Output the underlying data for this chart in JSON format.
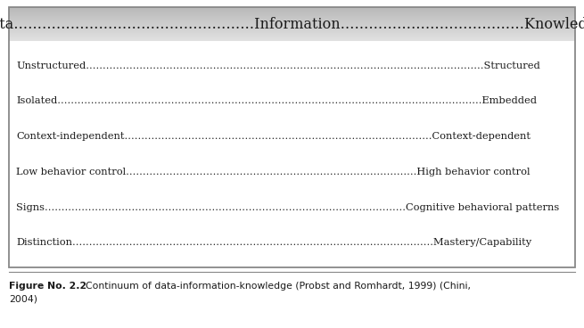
{
  "header_text": "Data……………………………………………Information…………………………………Knowledge",
  "rows": [
    "Unstructured………………………………………………………………………………………………………..Structured",
    "Isolated……………………………………………………………………………………………………………....Embedded",
    "Context-independent………………………………………………………………………………..Context-dependent",
    "Low behavior control……………………………………………………………………………High behavior control",
    "Signs………………………………………………………………………………………………Cognitive behavioral patterns",
    "Distinction…………………………………......………………………………………………………Mastery/Capability"
  ],
  "caption_bold": "Figure No. 2.2",
  "caption_normal": "    Continuum of data-information-knowledge (Probst and Romhardt, 1999) (Chini,",
  "caption_line2": "2004)",
  "border_color": "#888888",
  "text_color": "#1a1a1a",
  "caption_color": "#1a1a1a",
  "main_bg": "#ffffff",
  "header_grad_top": "#e0e0e0",
  "header_grad_mid": "#cccccc",
  "header_grad_bot": "#b0b0b0"
}
